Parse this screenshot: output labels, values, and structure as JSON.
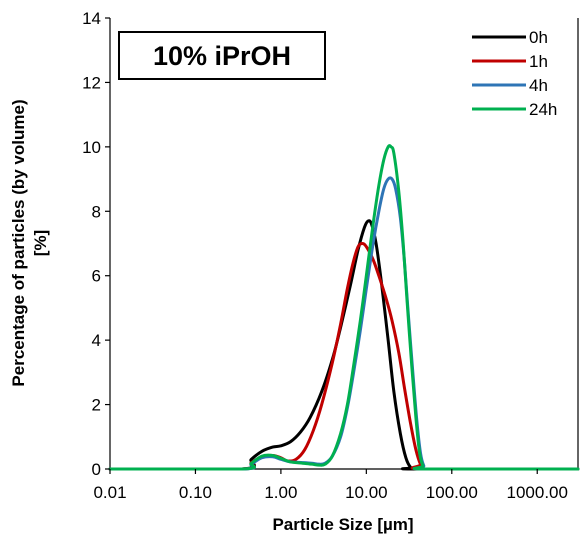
{
  "chart_data": {
    "type": "line",
    "title": "10% iPrOH",
    "xlabel": "Particle Size [µm]",
    "ylabel": "Percentage of particles (by volume) [%]",
    "ylabel_lines": [
      "Percentage of particles (by volume)",
      "[%]"
    ],
    "x_scale": "log",
    "xlim": [
      0.01,
      3000
    ],
    "ylim": [
      0,
      14
    ],
    "x_ticks": [
      {
        "value": 0.01,
        "label": "0.01"
      },
      {
        "value": 0.1,
        "label": "0.10"
      },
      {
        "value": 1,
        "label": "1.00"
      },
      {
        "value": 10,
        "label": "10.00"
      },
      {
        "value": 100,
        "label": "100.00"
      },
      {
        "value": 1000,
        "label": "1000.00"
      }
    ],
    "y_ticks": [
      {
        "value": 0,
        "label": "0"
      },
      {
        "value": 2,
        "label": "2"
      },
      {
        "value": 4,
        "label": "4"
      },
      {
        "value": 6,
        "label": "6"
      },
      {
        "value": 8,
        "label": "8"
      },
      {
        "value": 10,
        "label": "10"
      },
      {
        "value": 12,
        "label": "12"
      },
      {
        "value": 14,
        "label": "14"
      }
    ],
    "grid": false,
    "legend_position": "top-right",
    "series": [
      {
        "name": "0h",
        "color": "#000000",
        "points": [
          [
            0.01,
            0
          ],
          [
            0.35,
            0
          ],
          [
            0.45,
            0.3
          ],
          [
            0.6,
            0.55
          ],
          [
            0.8,
            0.68
          ],
          [
            1.0,
            0.72
          ],
          [
            1.3,
            0.85
          ],
          [
            1.7,
            1.15
          ],
          [
            2.2,
            1.6
          ],
          [
            3.0,
            2.4
          ],
          [
            4.0,
            3.4
          ],
          [
            5.0,
            4.4
          ],
          [
            6.5,
            5.7
          ],
          [
            8.0,
            6.8
          ],
          [
            9.5,
            7.5
          ],
          [
            10.5,
            7.7
          ],
          [
            11.5,
            7.6
          ],
          [
            13,
            7.0
          ],
          [
            15,
            5.8
          ],
          [
            18,
            4.0
          ],
          [
            21,
            2.4
          ],
          [
            25,
            1.1
          ],
          [
            29,
            0.35
          ],
          [
            33,
            0.05
          ],
          [
            38,
            0
          ],
          [
            3000,
            0
          ]
        ]
      },
      {
        "name": "1h",
        "color": "#c00000",
        "points": [
          [
            0.01,
            0
          ],
          [
            0.35,
            0
          ],
          [
            0.45,
            0.2
          ],
          [
            0.6,
            0.38
          ],
          [
            0.8,
            0.42
          ],
          [
            1.0,
            0.35
          ],
          [
            1.2,
            0.25
          ],
          [
            1.5,
            0.3
          ],
          [
            1.9,
            0.6
          ],
          [
            2.4,
            1.2
          ],
          [
            3.0,
            2.0
          ],
          [
            4.0,
            3.3
          ],
          [
            5.0,
            4.5
          ],
          [
            6.0,
            5.6
          ],
          [
            7.0,
            6.4
          ],
          [
            8.0,
            6.9
          ],
          [
            9.0,
            7.0
          ],
          [
            10,
            6.9
          ],
          [
            12,
            6.5
          ],
          [
            14,
            6.0
          ],
          [
            17,
            5.3
          ],
          [
            20,
            4.6
          ],
          [
            24,
            3.6
          ],
          [
            28,
            2.5
          ],
          [
            33,
            1.4
          ],
          [
            38,
            0.6
          ],
          [
            43,
            0.15
          ],
          [
            48,
            0
          ],
          [
            3000,
            0
          ]
        ]
      },
      {
        "name": "4h",
        "color": "#2e75b6",
        "points": [
          [
            0.01,
            0
          ],
          [
            0.35,
            0
          ],
          [
            0.45,
            0.15
          ],
          [
            0.6,
            0.35
          ],
          [
            0.8,
            0.38
          ],
          [
            1.0,
            0.3
          ],
          [
            1.3,
            0.22
          ],
          [
            1.8,
            0.2
          ],
          [
            2.3,
            0.18
          ],
          [
            2.8,
            0.15
          ],
          [
            3.3,
            0.18
          ],
          [
            4.0,
            0.4
          ],
          [
            5.0,
            1.0
          ],
          [
            6.0,
            1.9
          ],
          [
            7.0,
            2.9
          ],
          [
            8.5,
            4.3
          ],
          [
            10,
            5.6
          ],
          [
            12,
            7.0
          ],
          [
            14,
            8.0
          ],
          [
            16,
            8.7
          ],
          [
            18,
            9.0
          ],
          [
            20,
            9.0
          ],
          [
            22,
            8.7
          ],
          [
            25,
            7.8
          ],
          [
            28,
            6.4
          ],
          [
            31,
            4.8
          ],
          [
            35,
            3.0
          ],
          [
            39,
            1.5
          ],
          [
            43,
            0.5
          ],
          [
            47,
            0.1
          ],
          [
            52,
            0
          ],
          [
            3000,
            0
          ]
        ]
      },
      {
        "name": "24h",
        "color": "#00b050",
        "points": [
          [
            0.01,
            0
          ],
          [
            0.35,
            0
          ],
          [
            0.45,
            0.18
          ],
          [
            0.6,
            0.4
          ],
          [
            0.8,
            0.42
          ],
          [
            1.0,
            0.33
          ],
          [
            1.3,
            0.22
          ],
          [
            1.8,
            0.18
          ],
          [
            2.3,
            0.15
          ],
          [
            2.8,
            0.12
          ],
          [
            3.3,
            0.15
          ],
          [
            4.0,
            0.4
          ],
          [
            5.0,
            1.1
          ],
          [
            6.0,
            2.0
          ],
          [
            7.0,
            3.1
          ],
          [
            8.5,
            4.6
          ],
          [
            10,
            6.0
          ],
          [
            12,
            7.6
          ],
          [
            14,
            8.8
          ],
          [
            16,
            9.6
          ],
          [
            18,
            10.0
          ],
          [
            19.5,
            10.0
          ],
          [
            21,
            9.8
          ],
          [
            24,
            8.6
          ],
          [
            27,
            7.0
          ],
          [
            30,
            5.2
          ],
          [
            34,
            3.2
          ],
          [
            38,
            1.6
          ],
          [
            42,
            0.5
          ],
          [
            46,
            0.1
          ],
          [
            50,
            0
          ],
          [
            3000,
            0
          ]
        ]
      }
    ]
  }
}
